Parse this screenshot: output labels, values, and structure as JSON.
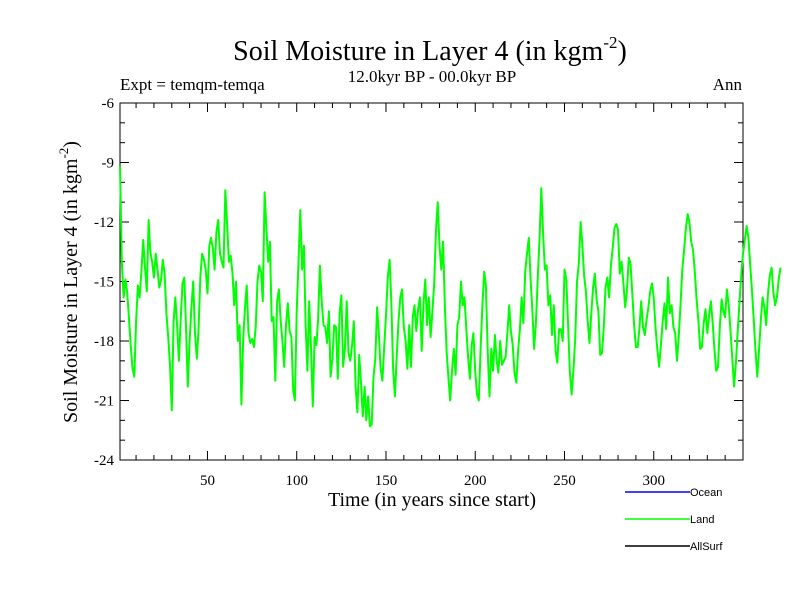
{
  "chart_data": {
    "type": "line",
    "title": "Soil Moisture in Layer 4 (in kgm",
    "title_sup": "-2",
    "title_close": ")",
    "subtitle_left": "Expt = temqm-temqa",
    "subtitle_center": "12.0kyr BP - 00.0kyr BP",
    "subtitle_right": "Ann",
    "xlabel": "Time (in years since start)",
    "ylabel": "Soil Moisture in Layer 4 (in kgm",
    "ylabel_sup": "-2",
    "ylabel_close": ")",
    "xlim": [
      1,
      350
    ],
    "ylim": [
      -24,
      -6
    ],
    "xticks": [
      50,
      100,
      150,
      200,
      250,
      300
    ],
    "yticks": [
      -6,
      -9,
      -12,
      -15,
      -18,
      -21,
      -24
    ],
    "legend_position": "bottom-right",
    "series": [
      {
        "name": "Ocean",
        "color": "#0000ff",
        "values": []
      },
      {
        "name": "Land",
        "color": "#00ff00",
        "x_start": 1,
        "x_step": 1,
        "values": [
          -9.2,
          -14.0,
          -15.8,
          -14.9,
          -15.5,
          -16.8,
          -18.2,
          -19.4,
          -19.8,
          -17.0,
          -15.2,
          -15.8,
          -14.5,
          -12.9,
          -14.3,
          -15.5,
          -11.9,
          -13.5,
          -14.0,
          -14.8,
          -13.6,
          -14.4,
          -15.3,
          -14.9,
          -13.9,
          -14.6,
          -16.6,
          -17.8,
          -19.2,
          -21.5,
          -17.0,
          -15.8,
          -17.2,
          -19.0,
          -16.9,
          -15.1,
          -14.8,
          -17.3,
          -20.3,
          -18.0,
          -16.3,
          -15.0,
          -17.6,
          -18.9,
          -17.5,
          -14.8,
          -13.6,
          -13.9,
          -14.4,
          -15.6,
          -13.2,
          -12.8,
          -13.3,
          -14.4,
          -12.5,
          -11.9,
          -13.6,
          -14.0,
          -14.3,
          -10.4,
          -12.1,
          -14.0,
          -13.7,
          -14.6,
          -16.2,
          -15.0,
          -18.0,
          -17.2,
          -21.2,
          -17.9,
          -16.3,
          -15.2,
          -17.6,
          -18.1,
          -17.9,
          -18.3,
          -17.3,
          -15.0,
          -14.2,
          -14.5,
          -16.0,
          -10.5,
          -12.3,
          -14.0,
          -13.0,
          -17.0,
          -16.8,
          -20.0,
          -16.0,
          -15.4,
          -17.0,
          -18.0,
          -19.3,
          -17.2,
          -16.1,
          -17.5,
          -17.8,
          -20.5,
          -21.0,
          -16.5,
          -14.0,
          -11.4,
          -14.4,
          -13.2,
          -17.3,
          -19.5,
          -16.0,
          -18.3,
          -21.3,
          -17.8,
          -18.2,
          -16.9,
          -14.2,
          -16.0,
          -17.2,
          -17.3,
          -18.1,
          -16.5,
          -19.8,
          -18.9,
          -17.2,
          -17.3,
          -19.9,
          -16.6,
          -15.7,
          -19.3,
          -18.4,
          -16.0,
          -18.6,
          -19.0,
          -18.2,
          -17.0,
          -20.3,
          -21.6,
          -18.7,
          -20.1,
          -21.8,
          -20.3,
          -22.0,
          -20.8,
          -22.3,
          -22.2,
          -19.8,
          -18.9,
          -16.3,
          -17.6,
          -19.4,
          -20.0,
          -18.3,
          -16.7,
          -14.8,
          -13.9,
          -16.0,
          -19.4,
          -20.8,
          -18.8,
          -17.0,
          -15.8,
          -15.4,
          -17.3,
          -18.0,
          -19.4,
          -17.2,
          -19.3,
          -16.8,
          -16.2,
          -17.5,
          -16.4,
          -15.8,
          -18.5,
          -16.1,
          -14.9,
          -17.2,
          -15.8,
          -17.8,
          -16.5,
          -15.1,
          -12.4,
          -11.0,
          -13.2,
          -14.4,
          -13.0,
          -16.3,
          -18.6,
          -19.9,
          -21.0,
          -19.5,
          -18.4,
          -19.7,
          -17.2,
          -16.8,
          -15.0,
          -16.2,
          -15.8,
          -17.4,
          -18.8,
          -19.9,
          -18.2,
          -17.6,
          -19.5,
          -20.7,
          -21.0,
          -18.4,
          -16.2,
          -14.5,
          -15.2,
          -18.5,
          -20.8,
          -18.4,
          -19.5,
          -17.7,
          -19.0,
          -19.6,
          -18.0,
          -19.2,
          -19.0,
          -18.8,
          -17.6,
          -16.2,
          -17.5,
          -18.2,
          -19.6,
          -20.1,
          -18.5,
          -17.4,
          -15.8,
          -17.1,
          -14.5,
          -13.6,
          -12.8,
          -14.9,
          -16.5,
          -18.4,
          -17.1,
          -14.9,
          -12.9,
          -10.3,
          -12.6,
          -14.4,
          -14.2,
          -16.2,
          -15.7,
          -17.7,
          -16.2,
          -18.5,
          -19.1,
          -17.4,
          -17.4,
          -18.0,
          -14.4,
          -14.9,
          -17.2,
          -19.5,
          -20.7,
          -19.5,
          -17.9,
          -15.0,
          -14.1,
          -12.0,
          -13.1,
          -14.7,
          -15.5,
          -17.0,
          -18.1,
          -16.6,
          -15.3,
          -14.6,
          -15.9,
          -16.5,
          -18.7,
          -18.6,
          -17.3,
          -15.3,
          -14.8,
          -15.8,
          -14.2,
          -13.3,
          -12.3,
          -12.1,
          -12.4,
          -14.6,
          -14.0,
          -15.1,
          -16.3,
          -15.4,
          -13.8,
          -14.1,
          -15.6,
          -17.2,
          -18.3,
          -18.3,
          -17.3,
          -16.0,
          -17.3,
          -17.7,
          -16.9,
          -16.3,
          -15.5,
          -15.1,
          -15.8,
          -17.3,
          -18.4,
          -19.3,
          -18.2,
          -17.0,
          -16.1,
          -17.4,
          -14.8,
          -16.6,
          -16.2,
          -17.3,
          -17.6,
          -19.0,
          -17.8,
          -16.2,
          -14.4,
          -13.4,
          -12.3,
          -11.6,
          -12.0,
          -13.0,
          -13.4,
          -14.5,
          -15.9,
          -17.0,
          -18.4,
          -18.3,
          -17.1,
          -16.4,
          -17.6,
          -16.7,
          -16.0,
          -17.1,
          -18.4,
          -19.5,
          -19.3,
          -17.3,
          -15.9,
          -16.5,
          -16.8,
          -15.4,
          -16.2,
          -17.5,
          -18.9,
          -20.3,
          -19.1,
          -17.6,
          -16.1,
          -14.7,
          -13.6,
          -12.9,
          -12.2,
          -12.8,
          -14.1,
          -15.4,
          -16.9,
          -18.5,
          -19.8,
          -18.4,
          -16.9,
          -15.8,
          -16.3,
          -17.2,
          -15.6,
          -14.7,
          -14.3,
          -15.5,
          -16.2,
          -15.8,
          -14.9,
          -14.3
        ]
      },
      {
        "name": "AllSurf",
        "color": "#000000",
        "values": []
      }
    ]
  }
}
